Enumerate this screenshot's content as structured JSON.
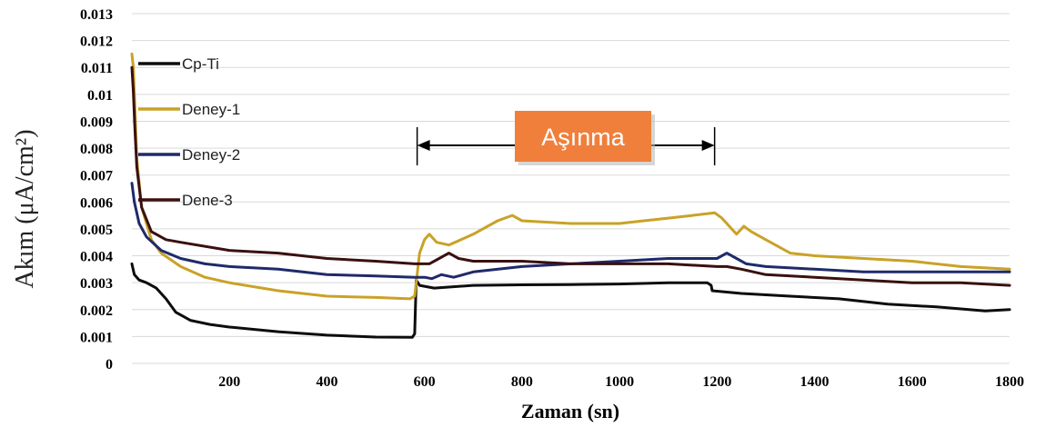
{
  "chart_data": {
    "type": "line",
    "xlabel": "Zaman (sn)",
    "ylabel": "Akım (μA/cm²)",
    "xlim": [
      0,
      1800
    ],
    "ylim": [
      0,
      0.013
    ],
    "x_ticks": [
      200,
      400,
      600,
      800,
      1000,
      1200,
      1400,
      1600,
      1800
    ],
    "y_ticks": [
      "0",
      "0.001",
      "0.002",
      "0.003",
      "0.004",
      "0.005",
      "0.006",
      "0.007",
      "0.008",
      "0.009",
      "0.01",
      "0.011",
      "0.012",
      "0.013"
    ],
    "grid": "horizontal",
    "legend_position": "left",
    "annotation": {
      "text": "Aşınma",
      "x_start": 585,
      "x_end": 1195,
      "color": "#f07f3c"
    },
    "series": [
      {
        "name": "Cp-Ti",
        "color": "#0d0d0d",
        "points": [
          [
            0,
            0.0037
          ],
          [
            5,
            0.0033
          ],
          [
            15,
            0.0031
          ],
          [
            30,
            0.003
          ],
          [
            50,
            0.0028
          ],
          [
            70,
            0.0024
          ],
          [
            90,
            0.0019
          ],
          [
            120,
            0.0016
          ],
          [
            160,
            0.00145
          ],
          [
            200,
            0.00135
          ],
          [
            300,
            0.00118
          ],
          [
            400,
            0.00105
          ],
          [
            500,
            0.00098
          ],
          [
            575,
            0.00097
          ],
          [
            580,
            0.0011
          ],
          [
            583,
            0.0031
          ],
          [
            590,
            0.0029
          ],
          [
            620,
            0.0028
          ],
          [
            700,
            0.0029
          ],
          [
            800,
            0.00292
          ],
          [
            900,
            0.00293
          ],
          [
            1000,
            0.00295
          ],
          [
            1100,
            0.003
          ],
          [
            1180,
            0.003
          ],
          [
            1188,
            0.0029
          ],
          [
            1190,
            0.0027
          ],
          [
            1250,
            0.0026
          ],
          [
            1350,
            0.0025
          ],
          [
            1450,
            0.0024
          ],
          [
            1550,
            0.0022
          ],
          [
            1650,
            0.0021
          ],
          [
            1750,
            0.00195
          ],
          [
            1800,
            0.002
          ]
        ]
      },
      {
        "name": "Deney-1",
        "color": "#c9a227",
        "points": [
          [
            0,
            0.0115
          ],
          [
            3,
            0.011
          ],
          [
            6,
            0.0096
          ],
          [
            10,
            0.0076
          ],
          [
            20,
            0.0058
          ],
          [
            40,
            0.0046
          ],
          [
            60,
            0.0041
          ],
          [
            100,
            0.0036
          ],
          [
            150,
            0.0032
          ],
          [
            200,
            0.003
          ],
          [
            300,
            0.0027
          ],
          [
            400,
            0.0025
          ],
          [
            500,
            0.00245
          ],
          [
            570,
            0.0024
          ],
          [
            580,
            0.0025
          ],
          [
            590,
            0.0041
          ],
          [
            600,
            0.0046
          ],
          [
            610,
            0.0048
          ],
          [
            625,
            0.0045
          ],
          [
            650,
            0.0044
          ],
          [
            700,
            0.0048
          ],
          [
            750,
            0.0053
          ],
          [
            780,
            0.0055
          ],
          [
            800,
            0.0053
          ],
          [
            900,
            0.0052
          ],
          [
            1000,
            0.0052
          ],
          [
            1050,
            0.0053
          ],
          [
            1100,
            0.0054
          ],
          [
            1150,
            0.0055
          ],
          [
            1195,
            0.0056
          ],
          [
            1210,
            0.0054
          ],
          [
            1240,
            0.0048
          ],
          [
            1255,
            0.0051
          ],
          [
            1270,
            0.0049
          ],
          [
            1300,
            0.0046
          ],
          [
            1350,
            0.0041
          ],
          [
            1400,
            0.004
          ],
          [
            1500,
            0.0039
          ],
          [
            1600,
            0.0038
          ],
          [
            1700,
            0.0036
          ],
          [
            1800,
            0.0035
          ]
        ]
      },
      {
        "name": "Deney-2",
        "color": "#1f2a6b",
        "points": [
          [
            0,
            0.0067
          ],
          [
            5,
            0.006
          ],
          [
            15,
            0.0052
          ],
          [
            30,
            0.0047
          ],
          [
            60,
            0.0042
          ],
          [
            100,
            0.0039
          ],
          [
            150,
            0.0037
          ],
          [
            200,
            0.0036
          ],
          [
            300,
            0.0035
          ],
          [
            400,
            0.0033
          ],
          [
            500,
            0.00325
          ],
          [
            580,
            0.0032
          ],
          [
            600,
            0.0032
          ],
          [
            615,
            0.00315
          ],
          [
            635,
            0.0033
          ],
          [
            660,
            0.0032
          ],
          [
            700,
            0.0034
          ],
          [
            800,
            0.0036
          ],
          [
            900,
            0.0037
          ],
          [
            1000,
            0.0038
          ],
          [
            1100,
            0.0039
          ],
          [
            1200,
            0.0039
          ],
          [
            1220,
            0.0041
          ],
          [
            1240,
            0.0039
          ],
          [
            1260,
            0.0037
          ],
          [
            1300,
            0.0036
          ],
          [
            1400,
            0.0035
          ],
          [
            1500,
            0.0034
          ],
          [
            1600,
            0.0034
          ],
          [
            1700,
            0.0034
          ],
          [
            1800,
            0.0034
          ]
        ]
      },
      {
        "name": "Dene-3",
        "color": "#3a1010",
        "points": [
          [
            0,
            0.011
          ],
          [
            3,
            0.0101
          ],
          [
            6,
            0.0088
          ],
          [
            10,
            0.0073
          ],
          [
            20,
            0.0058
          ],
          [
            40,
            0.0049
          ],
          [
            70,
            0.0046
          ],
          [
            100,
            0.0045
          ],
          [
            200,
            0.0042
          ],
          [
            300,
            0.0041
          ],
          [
            400,
            0.0039
          ],
          [
            500,
            0.0038
          ],
          [
            580,
            0.0037
          ],
          [
            610,
            0.0037
          ],
          [
            630,
            0.0039
          ],
          [
            650,
            0.0041
          ],
          [
            670,
            0.0039
          ],
          [
            700,
            0.0038
          ],
          [
            800,
            0.0038
          ],
          [
            900,
            0.0037
          ],
          [
            1000,
            0.0037
          ],
          [
            1100,
            0.0037
          ],
          [
            1200,
            0.0036
          ],
          [
            1220,
            0.0036
          ],
          [
            1250,
            0.0035
          ],
          [
            1300,
            0.0033
          ],
          [
            1400,
            0.0032
          ],
          [
            1500,
            0.0031
          ],
          [
            1600,
            0.003
          ],
          [
            1700,
            0.003
          ],
          [
            1800,
            0.0029
          ]
        ]
      }
    ]
  }
}
